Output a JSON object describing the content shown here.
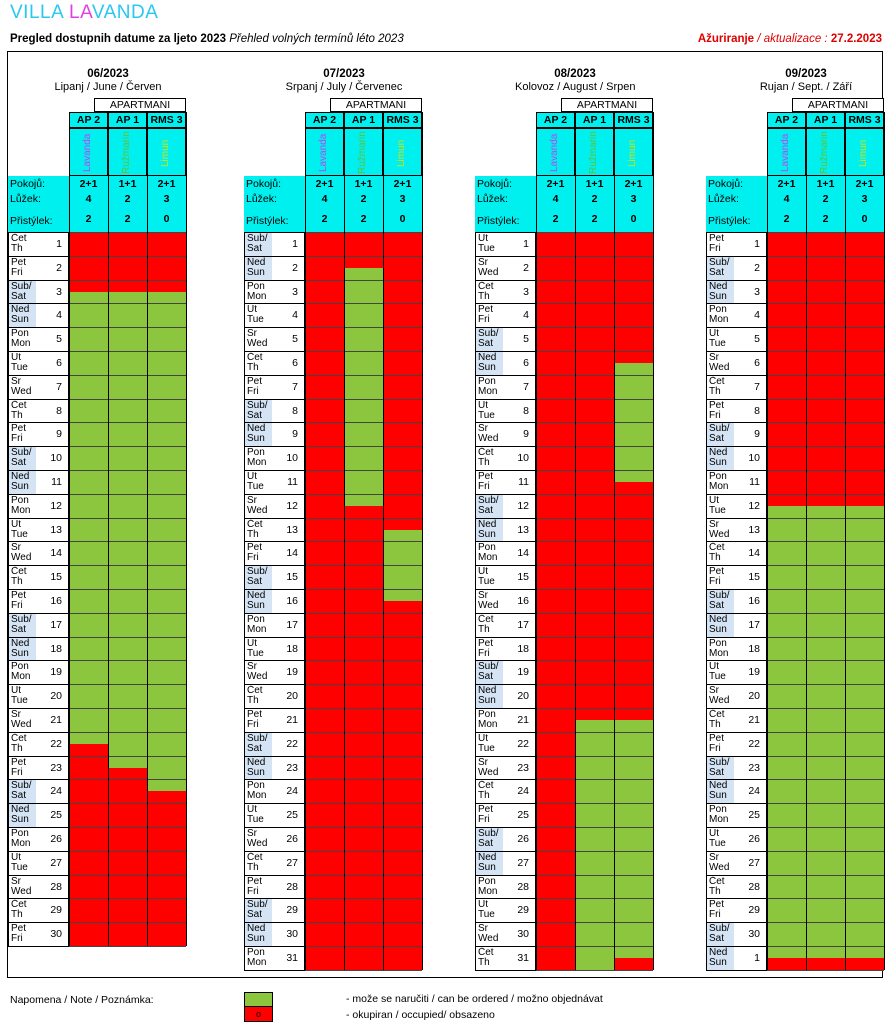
{
  "title": {
    "part1": "VILLA ",
    "part2": "LA",
    "part3": "VANDA"
  },
  "subtitle": {
    "hr": "Pregled dostupnih datume za ljeto 2023",
    "cz": "Přehled volných termínů léto 2023"
  },
  "updated": {
    "label": "Ažuriranje",
    "sep": " / ",
    "label_cz": "aktualizace",
    "colon": " : ",
    "date": "27.2.2023"
  },
  "apartments_header": "APARTMANI",
  "apartments": [
    {
      "code": "AP 2",
      "name": "Lavanda",
      "rooms": "2+1",
      "beds": "4",
      "extra": "2",
      "name_color": "#c040f0"
    },
    {
      "code": "AP 1",
      "name": "Ružmarin",
      "rooms": "1+1",
      "beds": "2",
      "extra": "2",
      "name_color": "#60c030"
    },
    {
      "code": "RMS 3",
      "name": "Limun",
      "rooms": "2+1",
      "beds": "3",
      "extra": "0",
      "name_color": "#d8e000"
    }
  ],
  "labels": {
    "rooms": "Pokojů:",
    "beds": "Lůžek:",
    "extra": "Přistýlek:"
  },
  "months": [
    {
      "code": "06/2023",
      "names": "Lipanj / June / Červen",
      "days": [
        [
          "Čet",
          "Th"
        ],
        [
          "Pet",
          "Fri"
        ],
        [
          "Sub/",
          "Sat"
        ],
        [
          "Ned",
          "Sun"
        ],
        [
          "Pon",
          "Mon"
        ],
        [
          "Ut",
          "Tue"
        ],
        [
          "Sr",
          "Wed"
        ],
        [
          "Čet",
          "Th"
        ],
        [
          "Pet",
          "Fri"
        ],
        [
          "Sub/",
          "Sat"
        ],
        [
          "Ned",
          "Sun"
        ],
        [
          "Pon",
          "Mon"
        ],
        [
          "Ut",
          "Tue"
        ],
        [
          "Sr",
          "Wed"
        ],
        [
          "Čet",
          "Th"
        ],
        [
          "Pet",
          "Fri"
        ],
        [
          "Sub/",
          "Sat"
        ],
        [
          "Ned",
          "Sun"
        ],
        [
          "Pon",
          "Mon"
        ],
        [
          "Ut",
          "Tue"
        ],
        [
          "Sr",
          "Wed"
        ],
        [
          "Čet",
          "Th"
        ],
        [
          "Pet",
          "Fri"
        ],
        [
          "Sub/",
          "Sat"
        ],
        [
          "Ned",
          "Sun"
        ],
        [
          "Pon",
          "Mon"
        ],
        [
          "Ut",
          "Tue"
        ],
        [
          "Sr",
          "Wed"
        ],
        [
          "Čet",
          "Th"
        ],
        [
          "Pet",
          "Fri"
        ]
      ],
      "day_numbers": [
        "1",
        "2",
        "3",
        "4",
        "5",
        "6",
        "7",
        "8",
        "9",
        "10",
        "11",
        "12",
        "13",
        "14",
        "15",
        "16",
        "17",
        "18",
        "19",
        "20",
        "21",
        "22",
        "23",
        "24",
        "25",
        "26",
        "27",
        "28",
        "29",
        "30"
      ],
      "occupied": [
        [
          [
            0,
            2.5
          ],
          [
            21.5,
            30
          ]
        ],
        [
          [
            0,
            2.5
          ],
          [
            22.5,
            30
          ]
        ],
        [
          [
            0,
            2.5
          ],
          [
            23.5,
            30
          ]
        ]
      ]
    },
    {
      "code": "07/2023",
      "names": "Srpanj / July / Červenec",
      "days": [
        [
          "Sub/",
          "Sat"
        ],
        [
          "Ned",
          "Sun"
        ],
        [
          "Pon",
          "Mon"
        ],
        [
          "Ut",
          "Tue"
        ],
        [
          "Sr",
          "Wed"
        ],
        [
          "Čet",
          "Th"
        ],
        [
          "Pet",
          "Fri"
        ],
        [
          "Sub/",
          "Sat"
        ],
        [
          "Ned",
          "Sun"
        ],
        [
          "Pon",
          "Mon"
        ],
        [
          "Ut",
          "Tue"
        ],
        [
          "Sr",
          "Wed"
        ],
        [
          "Čet",
          "Th"
        ],
        [
          "Pet",
          "Fri"
        ],
        [
          "Sub/",
          "Sat"
        ],
        [
          "Ned",
          "Sun"
        ],
        [
          "Pon",
          "Mon"
        ],
        [
          "Ut",
          "Tue"
        ],
        [
          "Sr",
          "Wed"
        ],
        [
          "Čet",
          "Th"
        ],
        [
          "Pet",
          "Fri"
        ],
        [
          "Sub/",
          "Sat"
        ],
        [
          "Ned",
          "Sun"
        ],
        [
          "Pon",
          "Mon"
        ],
        [
          "Ut",
          "Tue"
        ],
        [
          "Sr",
          "Wed"
        ],
        [
          "Čet",
          "Th"
        ],
        [
          "Pet",
          "Fri"
        ],
        [
          "Sub/",
          "Sat"
        ],
        [
          "Ned",
          "Sun"
        ],
        [
          "Pon",
          "Mon"
        ]
      ],
      "day_numbers": [
        "1",
        "2",
        "3",
        "4",
        "5",
        "6",
        "7",
        "8",
        "9",
        "10",
        "11",
        "12",
        "13",
        "14",
        "15",
        "16",
        "17",
        "18",
        "19",
        "20",
        "21",
        "22",
        "23",
        "24",
        "25",
        "26",
        "27",
        "28",
        "29",
        "30",
        "31"
      ],
      "occupied": [
        [
          [
            0,
            31
          ]
        ],
        [
          [
            0,
            1.5
          ],
          [
            11.5,
            31
          ]
        ],
        [
          [
            0,
            12.5
          ],
          [
            15.5,
            31
          ]
        ]
      ]
    },
    {
      "code": "08/2023",
      "names": "Kolovoz / August / Srpen",
      "days": [
        [
          "Ut",
          "Tue"
        ],
        [
          "Sr",
          "Wed"
        ],
        [
          "Čet",
          "Th"
        ],
        [
          "Pet",
          "Fri"
        ],
        [
          "Sub/",
          "Sat"
        ],
        [
          "Ned",
          "Sun"
        ],
        [
          "Pon",
          "Mon"
        ],
        [
          "Ut",
          "Tue"
        ],
        [
          "Sr",
          "Wed"
        ],
        [
          "Čet",
          "Th"
        ],
        [
          "Pet",
          "Fri"
        ],
        [
          "Sub/",
          "Sat"
        ],
        [
          "Ned",
          "Sun"
        ],
        [
          "Pon",
          "Mon"
        ],
        [
          "Ut",
          "Tue"
        ],
        [
          "Sr",
          "Wed"
        ],
        [
          "Čet",
          "Th"
        ],
        [
          "Pet",
          "Fri"
        ],
        [
          "Sub/",
          "Sat"
        ],
        [
          "Ned",
          "Sun"
        ],
        [
          "Pon",
          "Mon"
        ],
        [
          "Ut",
          "Tue"
        ],
        [
          "Sr",
          "Wed"
        ],
        [
          "Čet",
          "Th"
        ],
        [
          "Pet",
          "Fri"
        ],
        [
          "Sub/",
          "Sat"
        ],
        [
          "Ned",
          "Sun"
        ],
        [
          "Pon",
          "Mon"
        ],
        [
          "Ut",
          "Tue"
        ],
        [
          "Sr",
          "Wed"
        ],
        [
          "Čet",
          "Th"
        ]
      ],
      "day_numbers": [
        "1",
        "2",
        "3",
        "4",
        "5",
        "6",
        "7",
        "8",
        "9",
        "10",
        "11",
        "12",
        "13",
        "14",
        "15",
        "16",
        "17",
        "18",
        "19",
        "20",
        "21",
        "22",
        "23",
        "24",
        "25",
        "26",
        "27",
        "28",
        "29",
        "30",
        "31"
      ],
      "occupied": [
        [
          [
            0,
            31
          ]
        ],
        [
          [
            0,
            20.5
          ]
        ],
        [
          [
            0,
            5.5
          ],
          [
            10.5,
            20.5
          ],
          [
            30.5,
            31
          ]
        ]
      ]
    },
    {
      "code": "09/2023",
      "names": "Rujan / Sept. / Září",
      "days": [
        [
          "Pet",
          "Fri"
        ],
        [
          "Sub/",
          "Sat"
        ],
        [
          "Ned",
          "Sun"
        ],
        [
          "Pon",
          "Mon"
        ],
        [
          "Ut",
          "Tue"
        ],
        [
          "Sr",
          "Wed"
        ],
        [
          "Čet",
          "Th"
        ],
        [
          "Pet",
          "Fri"
        ],
        [
          "Sub/",
          "Sat"
        ],
        [
          "Ned",
          "Sun"
        ],
        [
          "Pon",
          "Mon"
        ],
        [
          "Ut",
          "Tue"
        ],
        [
          "Sr",
          "Wed"
        ],
        [
          "Čet",
          "Th"
        ],
        [
          "Pet",
          "Fri"
        ],
        [
          "Sub/",
          "Sat"
        ],
        [
          "Ned",
          "Sun"
        ],
        [
          "Pon",
          "Mon"
        ],
        [
          "Ut",
          "Tue"
        ],
        [
          "Sr",
          "Wed"
        ],
        [
          "Čet",
          "Th"
        ],
        [
          "Pet",
          "Fri"
        ],
        [
          "Sub/",
          "Sat"
        ],
        [
          "Ned",
          "Sun"
        ],
        [
          "Pon",
          "Mon"
        ],
        [
          "Ut",
          "Tue"
        ],
        [
          "Sr",
          "Wed"
        ],
        [
          "Čet",
          "Th"
        ],
        [
          "Pet",
          "Fri"
        ],
        [
          "Sub/",
          "Sat"
        ],
        [
          "Ned",
          "Sun"
        ]
      ],
      "day_numbers": [
        "1",
        "2",
        "3",
        "4",
        "5",
        "6",
        "7",
        "8",
        "9",
        "10",
        "11",
        "12",
        "13",
        "14",
        "15",
        "16",
        "17",
        "18",
        "19",
        "20",
        "21",
        "22",
        "23",
        "24",
        "25",
        "26",
        "27",
        "28",
        "29",
        "30",
        "1"
      ],
      "occupied": [
        [
          [
            0,
            11.5
          ],
          [
            30.5,
            31
          ]
        ],
        [
          [
            0,
            11.5
          ],
          [
            30.5,
            31
          ]
        ],
        [
          [
            0,
            11.5
          ],
          [
            30.5,
            31
          ]
        ]
      ]
    }
  ],
  "legend": {
    "label": "Napomena / Note / Poznámka:",
    "free_text": "- može se naručiti / can be ordered / možno objednávat",
    "occupied_text": "- okupiran / occupied/ obsazeno",
    "occupied_mark": "o"
  },
  "colors": {
    "free": "#8cc63e",
    "occupied": "#ff0000",
    "header": "#00f0f0",
    "weekend_tint": "#d4e4f4",
    "title": "#28c8f0",
    "title_accent": "#e040e0"
  }
}
